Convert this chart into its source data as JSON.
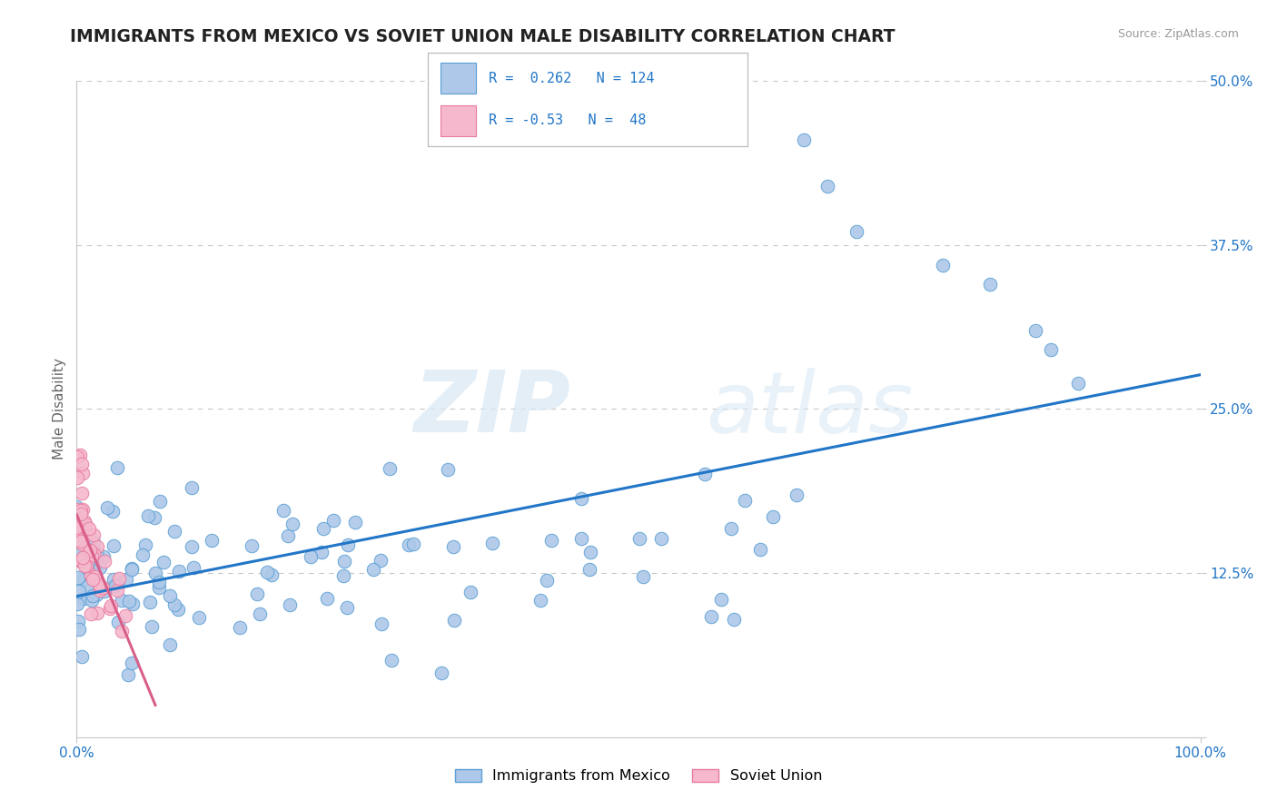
{
  "title": "IMMIGRANTS FROM MEXICO VS SOVIET UNION MALE DISABILITY CORRELATION CHART",
  "source": "Source: ZipAtlas.com",
  "ylabel": "Male Disability",
  "xlim": [
    0,
    1
  ],
  "ylim": [
    0,
    0.5
  ],
  "yticks": [
    0,
    0.125,
    0.25,
    0.375,
    0.5
  ],
  "ytick_labels": [
    "",
    "12.5%",
    "25.0%",
    "37.5%",
    "50.0%"
  ],
  "xticks": [
    0,
    1
  ],
  "xtick_labels": [
    "0.0%",
    "100.0%"
  ],
  "mexico_R": 0.262,
  "mexico_N": 124,
  "soviet_R": -0.53,
  "soviet_N": 48,
  "mexico_color": "#adc8e8",
  "soviet_color": "#f5b8cc",
  "mexico_edge_color": "#5a9fd4",
  "soviet_edge_color": "#e87aa0",
  "mexico_line_color": "#2176c7",
  "soviet_line_color": "#d95f8a",
  "legend_label_mexico": "Immigrants from Mexico",
  "legend_label_soviet": "Soviet Union",
  "watermark_zip": "ZIP",
  "watermark_atlas": "atlas",
  "background_color": "#ffffff",
  "grid_color": "#c8c8c8",
  "title_color": "#222222",
  "title_fontsize": 13.5,
  "axis_label_fontsize": 11,
  "tick_label_color": "#2176c7",
  "tick_label_fontsize": 11
}
